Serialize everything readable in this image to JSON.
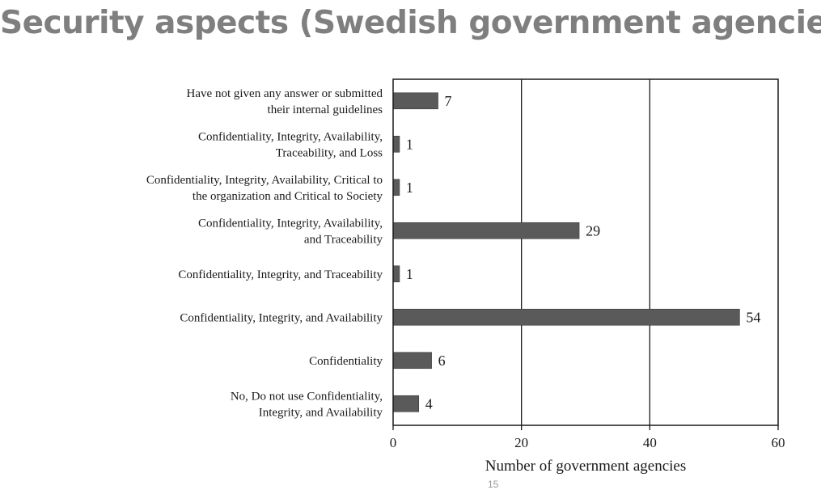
{
  "slide": {
    "title": "Security aspects (Swedish government agencies)",
    "page_number": "15"
  },
  "chart_data": {
    "type": "bar",
    "orientation": "horizontal",
    "categories": [
      [
        "Have not given any answer or submitted",
        "their internal guidelines"
      ],
      [
        "Confidentiality, Integrity, Availability,",
        "Traceability, and Loss"
      ],
      [
        "Confidentiality, Integrity, Availability, Critical to",
        "the organization and Critical to Society"
      ],
      [
        "Confidentiality, Integrity, Availability,",
        "and Traceability"
      ],
      [
        "Confidentiality, Integrity, and Traceability"
      ],
      [
        "Confidentiality, Integrity, and Availability"
      ],
      [
        "Confidentiality"
      ],
      [
        "No, Do not use Confidentiality,",
        "Integrity, and Availability"
      ]
    ],
    "values": [
      7,
      1,
      1,
      29,
      1,
      54,
      6,
      4
    ],
    "xlabel": "Number of government agencies",
    "ylabel": "",
    "xlim": [
      0,
      60
    ],
    "xticks": [
      0,
      20,
      40,
      60
    ],
    "grid": "vertical",
    "bar_color": "#5a5a5a"
  }
}
